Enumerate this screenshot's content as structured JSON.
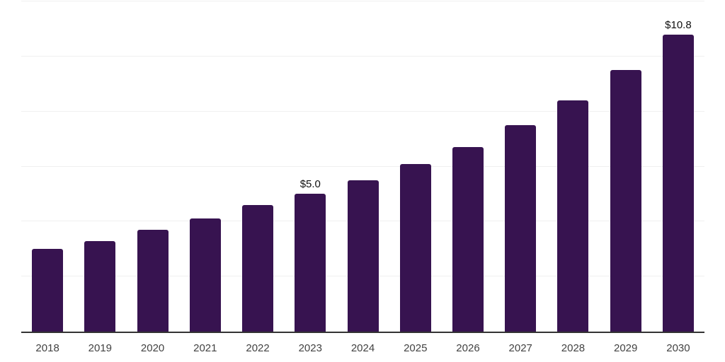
{
  "chart_data": {
    "type": "bar",
    "title": "",
    "xlabel": "",
    "ylabel": "",
    "categories": [
      "2018",
      "2019",
      "2020",
      "2021",
      "2022",
      "2023",
      "2024",
      "2025",
      "2026",
      "2027",
      "2028",
      "2029",
      "2030"
    ],
    "values": [
      3.0,
      3.3,
      3.7,
      4.1,
      4.6,
      5.0,
      5.5,
      6.1,
      6.7,
      7.5,
      8.4,
      9.5,
      10.8
    ],
    "value_labels": {
      "2023": "$5.0",
      "2030": "$10.8"
    },
    "ylim": [
      0,
      12
    ],
    "gridline_values": [
      2,
      4,
      6,
      8,
      10,
      12
    ],
    "grid": "horizontal",
    "legend_position": "none",
    "colors": {
      "bar": "#371350",
      "gridline": "#f0f0f0",
      "axis_line": "#333333",
      "tick_label": "#424242",
      "value_label": "#101010",
      "background": "#ffffff"
    }
  }
}
